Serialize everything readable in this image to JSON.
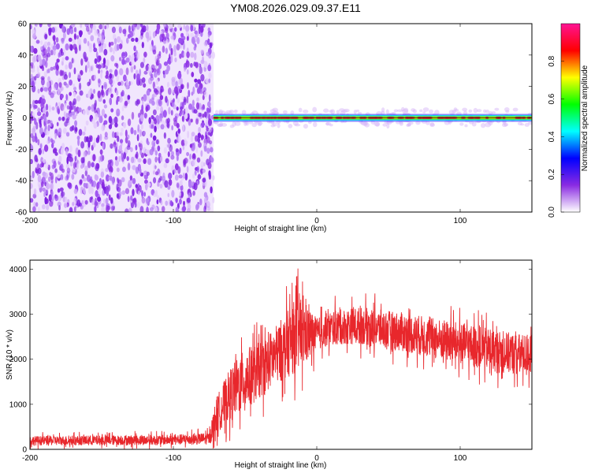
{
  "title": "YM08.2026.029.09.37.E11",
  "chart_data": [
    {
      "type": "heatmap",
      "name": "spectrogram",
      "xlabel": "Height of straight line (km)",
      "ylabel": "Frequency (Hz)",
      "xlim": [
        -200,
        150
      ],
      "ylim": [
        -60,
        60
      ],
      "xticks": [
        -200,
        -100,
        0,
        100
      ],
      "xtick_labels": [
        "-200",
        "-100",
        "0",
        "100"
      ],
      "yticks": [
        60,
        40,
        20,
        0,
        -20,
        -40,
        -60
      ],
      "ytick_labels": [
        "60",
        "40",
        "20",
        "0",
        "-20",
        "-40",
        "-60"
      ],
      "noise_region_x": [
        -200,
        -72
      ],
      "signal_line_frequency": 0,
      "colorbar": {
        "label": "Normalized spectral amplitude",
        "range": [
          0,
          1
        ],
        "ticks": [
          0.8,
          0.6,
          0.4,
          0.2,
          0.0
        ],
        "tick_labels": [
          "0.8",
          "0.6",
          "0.4",
          "0.2",
          "0.0"
        ],
        "stops": [
          "#ffffff",
          "#8a2be2",
          "#0000ff",
          "#00ffff",
          "#00ff00",
          "#ffff00",
          "#ff0000",
          "#ff1493"
        ]
      }
    },
    {
      "type": "line",
      "name": "snr",
      "xlabel": "Height of straight line (km)",
      "ylabel": "SNR (10 * v/v)",
      "xlim": [
        -200,
        150
      ],
      "ylim": [
        0,
        4200
      ],
      "xticks": [
        -200,
        -100,
        0,
        100
      ],
      "xtick_labels": [
        "-200",
        "-100",
        "0",
        "100"
      ],
      "yticks": [
        0,
        1000,
        2000,
        3000,
        4000
      ],
      "ytick_labels": [
        "0",
        "1000",
        "2000",
        "3000",
        "4000"
      ],
      "color": "#e8272c",
      "envelope": {
        "x": [
          -200,
          -150,
          -100,
          -75,
          -70,
          -60,
          -50,
          -40,
          -30,
          -20,
          -12,
          -5,
          0,
          10,
          30,
          60,
          100,
          130,
          150
        ],
        "low": [
          0,
          0,
          0,
          0,
          0,
          200,
          300,
          600,
          900,
          1000,
          1000,
          1500,
          1900,
          2000,
          2000,
          1800,
          1500,
          1300,
          1300
        ],
        "high": [
          380,
          400,
          420,
          480,
          1500,
          2300,
          2800,
          2900,
          3200,
          3700,
          4200,
          3600,
          3200,
          3400,
          3500,
          3400,
          3200,
          3000,
          2900
        ]
      }
    }
  ]
}
